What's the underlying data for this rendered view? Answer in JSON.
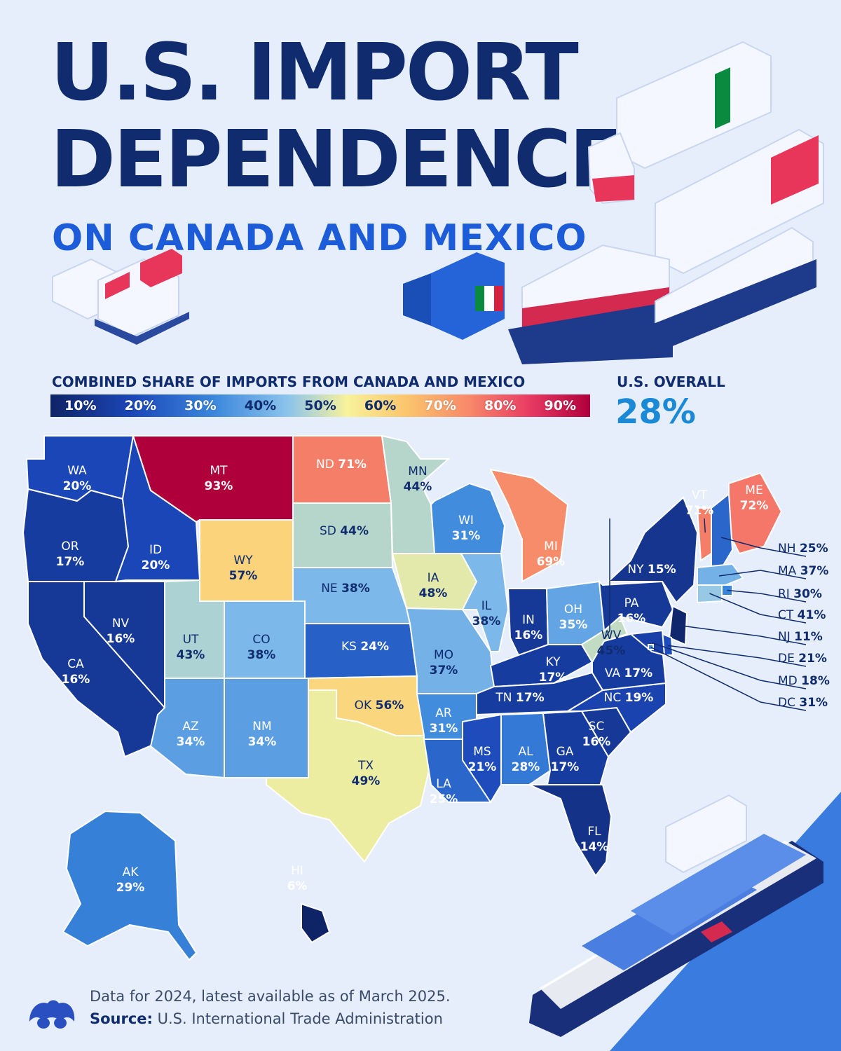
{
  "header": {
    "title_line1": "U.S. IMPORT",
    "title_line2": "DEPENDENCE",
    "subtitle": "ON CANADA AND MEXICO"
  },
  "legend": {
    "title": "COMBINED SHARE OF IMPORTS FROM CANADA AND MEXICO",
    "ticks": [
      "10%",
      "20%",
      "30%",
      "40%",
      "50%",
      "60%",
      "70%",
      "80%",
      "90%"
    ]
  },
  "overall": {
    "label": "U.S. OVERALL",
    "value": "28%"
  },
  "colors": {
    "background": "#e6eefb",
    "title": "#102c6e",
    "subtitle": "#1c5cd8",
    "scale_low": "#0f2466",
    "scale_mid": "#f8f29a",
    "scale_high": "#b0003c"
  },
  "chart_data": {
    "type": "choropleth",
    "metric": "COMBINED SHARE OF IMPORTS FROM CANADA AND MEXICO",
    "unit": "%",
    "states": [
      {
        "code": "WA",
        "value": 20
      },
      {
        "code": "OR",
        "value": 17
      },
      {
        "code": "CA",
        "value": 16
      },
      {
        "code": "NV",
        "value": 16
      },
      {
        "code": "ID",
        "value": 20
      },
      {
        "code": "MT",
        "value": 93
      },
      {
        "code": "WY",
        "value": 57
      },
      {
        "code": "UT",
        "value": 43
      },
      {
        "code": "CO",
        "value": 38
      },
      {
        "code": "AZ",
        "value": 34
      },
      {
        "code": "NM",
        "value": 34
      },
      {
        "code": "ND",
        "value": 71
      },
      {
        "code": "SD",
        "value": 44
      },
      {
        "code": "NE",
        "value": 38
      },
      {
        "code": "KS",
        "value": 24
      },
      {
        "code": "OK",
        "value": 56
      },
      {
        "code": "TX",
        "value": 49
      },
      {
        "code": "MN",
        "value": 44
      },
      {
        "code": "IA",
        "value": 48
      },
      {
        "code": "MO",
        "value": 37
      },
      {
        "code": "AR",
        "value": 31
      },
      {
        "code": "LA",
        "value": 25
      },
      {
        "code": "WI",
        "value": 31
      },
      {
        "code": "IL",
        "value": 38
      },
      {
        "code": "MI",
        "value": 69
      },
      {
        "code": "IN",
        "value": 16
      },
      {
        "code": "OH",
        "value": 35
      },
      {
        "code": "KY",
        "value": 17
      },
      {
        "code": "TN",
        "value": 17
      },
      {
        "code": "MS",
        "value": 21
      },
      {
        "code": "AL",
        "value": 28
      },
      {
        "code": "GA",
        "value": 17
      },
      {
        "code": "FL",
        "value": 14
      },
      {
        "code": "SC",
        "value": 16
      },
      {
        "code": "NC",
        "value": 19
      },
      {
        "code": "VA",
        "value": 17
      },
      {
        "code": "WV",
        "value": 45
      },
      {
        "code": "PA",
        "value": 16
      },
      {
        "code": "NY",
        "value": 15
      },
      {
        "code": "VT",
        "value": 71
      },
      {
        "code": "ME",
        "value": 72
      },
      {
        "code": "NH",
        "value": 25
      },
      {
        "code": "MA",
        "value": 37
      },
      {
        "code": "RI",
        "value": 30
      },
      {
        "code": "CT",
        "value": 41
      },
      {
        "code": "NJ",
        "value": 11
      },
      {
        "code": "DE",
        "value": 21
      },
      {
        "code": "MD",
        "value": 18
      },
      {
        "code": "DC",
        "value": 31
      },
      {
        "code": "AK",
        "value": 29
      },
      {
        "code": "HI",
        "value": 6
      }
    ]
  },
  "footer": {
    "note": "Data for 2024, latest available as of March 2025.",
    "source_label": "Source:",
    "source_text": "U.S. International Trade Administration"
  }
}
